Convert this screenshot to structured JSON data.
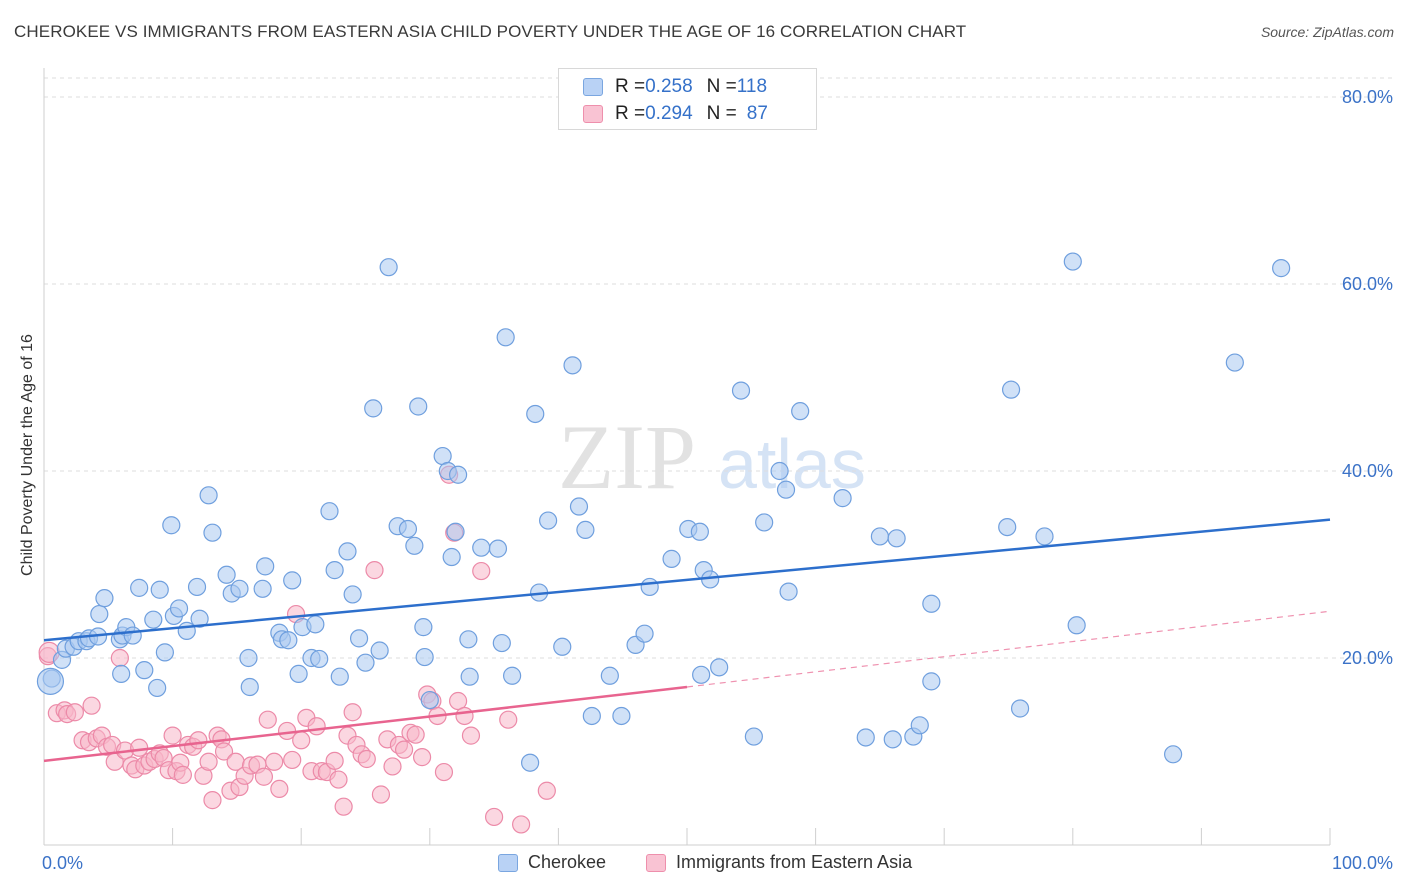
{
  "title": "CHEROKEE VS IMMIGRANTS FROM EASTERN ASIA CHILD POVERTY UNDER THE AGE OF 16 CORRELATION CHART",
  "source": "Source: ZipAtlas.com",
  "watermark": {
    "zip": "ZIP",
    "atlas": "atlas"
  },
  "legend_top": {
    "rows": [
      {
        "r_label": "R = ",
        "r_value": "0.258",
        "n_label": "N = ",
        "n_value": "118"
      },
      {
        "r_label": "R = ",
        "r_value": "0.294",
        "n_label": "N = ",
        "n_value": "87"
      }
    ]
  },
  "legend_bottom": [
    "Cherokee",
    "Immigrants from Eastern Asia"
  ],
  "colors": {
    "blue_fill": "#a9c8f0",
    "blue_stroke": "#6f9fde",
    "blue_line": "#2d6fcc",
    "pink_fill": "#f7b6c9",
    "pink_stroke": "#ec8aa8",
    "pink_line": "#e8648f",
    "axis_text": "#3b72c7",
    "grid": "#dedede"
  },
  "chart_data": {
    "type": "scatter",
    "title": "CHEROKEE VS IMMIGRANTS FROM EASTERN ASIA CHILD POVERTY UNDER THE AGE OF 16 CORRELATION CHART",
    "xlabel": "",
    "ylabel": "Child Poverty Under the Age of 16",
    "xlim": [
      0,
      100
    ],
    "ylim": [
      0,
      80
    ],
    "x_tick_labels": [
      "0.0%",
      "100.0%"
    ],
    "y_ticks": [
      20,
      40,
      60,
      80
    ],
    "y_tick_labels": [
      "20.0%",
      "40.0%",
      "60.0%",
      "80.0%"
    ],
    "grid": true,
    "series": [
      {
        "name": "Cherokee",
        "R": 0.258,
        "N": 118,
        "trend": {
          "x0": 0,
          "y0": 21.9,
          "x1": 100,
          "y1": 34.8,
          "style": "solid"
        },
        "points": [
          [
            0.6,
            17.8
          ],
          [
            1.4,
            19.8
          ],
          [
            1.7,
            21.0
          ],
          [
            2.3,
            21.2
          ],
          [
            2.7,
            21.8
          ],
          [
            3.3,
            21.8
          ],
          [
            3.5,
            22.1
          ],
          [
            4.2,
            22.3
          ],
          [
            4.3,
            24.7
          ],
          [
            4.7,
            26.4
          ],
          [
            5.9,
            22.0
          ],
          [
            6.1,
            22.4
          ],
          [
            6.0,
            18.3
          ],
          [
            6.4,
            23.3
          ],
          [
            6.9,
            22.4
          ],
          [
            7.4,
            27.5
          ],
          [
            7.8,
            18.7
          ],
          [
            8.5,
            24.1
          ],
          [
            8.8,
            16.8
          ],
          [
            9.4,
            20.6
          ],
          [
            9.9,
            34.2
          ],
          [
            10.1,
            24.5
          ],
          [
            10.5,
            25.3
          ],
          [
            11.1,
            22.9
          ],
          [
            11.9,
            27.6
          ],
          [
            12.1,
            24.2
          ],
          [
            12.8,
            37.4
          ],
          [
            13.1,
            33.4
          ],
          [
            14.2,
            28.9
          ],
          [
            14.6,
            26.9
          ],
          [
            15.2,
            27.4
          ],
          [
            15.9,
            20.0
          ],
          [
            16.0,
            16.9
          ],
          [
            17.0,
            27.4
          ],
          [
            17.2,
            29.8
          ],
          [
            18.3,
            22.7
          ],
          [
            18.5,
            22.0
          ],
          [
            19.0,
            21.9
          ],
          [
            19.3,
            28.3
          ],
          [
            19.8,
            18.3
          ],
          [
            20.1,
            23.3
          ],
          [
            20.8,
            20.0
          ],
          [
            21.1,
            23.6
          ],
          [
            21.4,
            19.9
          ],
          [
            22.2,
            35.7
          ],
          [
            22.6,
            29.4
          ],
          [
            23.0,
            18.0
          ],
          [
            23.6,
            31.4
          ],
          [
            24.0,
            26.8
          ],
          [
            24.5,
            22.1
          ],
          [
            25.0,
            19.5
          ],
          [
            25.6,
            46.7
          ],
          [
            26.1,
            20.8
          ],
          [
            26.8,
            61.8
          ],
          [
            27.5,
            34.1
          ],
          [
            28.3,
            33.8
          ],
          [
            28.8,
            32.0
          ],
          [
            29.1,
            46.9
          ],
          [
            29.5,
            23.3
          ],
          [
            29.6,
            20.1
          ],
          [
            30.0,
            15.5
          ],
          [
            31.0,
            41.6
          ],
          [
            31.4,
            40.0
          ],
          [
            31.7,
            30.8
          ],
          [
            32.2,
            39.6
          ],
          [
            32.0,
            33.5
          ],
          [
            33.0,
            22.0
          ],
          [
            33.1,
            18.0
          ],
          [
            34.0,
            31.8
          ],
          [
            35.3,
            31.7
          ],
          [
            35.6,
            21.6
          ],
          [
            35.9,
            54.3
          ],
          [
            36.4,
            18.1
          ],
          [
            38.2,
            46.1
          ],
          [
            38.5,
            27.0
          ],
          [
            39.2,
            34.7
          ],
          [
            40.3,
            21.2
          ],
          [
            41.1,
            51.3
          ],
          [
            41.6,
            36.2
          ],
          [
            42.1,
            33.7
          ],
          [
            42.6,
            13.8
          ],
          [
            44.0,
            18.1
          ],
          [
            44.9,
            13.8
          ],
          [
            46.0,
            21.4
          ],
          [
            46.7,
            22.6
          ],
          [
            47.1,
            27.6
          ],
          [
            48.8,
            30.6
          ],
          [
            50.1,
            33.8
          ],
          [
            51.0,
            33.5
          ],
          [
            51.1,
            18.2
          ],
          [
            51.3,
            29.4
          ],
          [
            51.8,
            28.4
          ],
          [
            52.5,
            19.0
          ],
          [
            54.2,
            48.6
          ],
          [
            55.2,
            11.6
          ],
          [
            56.0,
            34.5
          ],
          [
            57.2,
            40.0
          ],
          [
            57.7,
            38.0
          ],
          [
            57.9,
            27.1
          ],
          [
            58.8,
            46.4
          ],
          [
            62.1,
            37.1
          ],
          [
            63.9,
            11.5
          ],
          [
            65.0,
            33.0
          ],
          [
            66.0,
            11.3
          ],
          [
            66.3,
            32.8
          ],
          [
            67.6,
            11.6
          ],
          [
            68.1,
            12.8
          ],
          [
            69.0,
            17.5
          ],
          [
            69.0,
            25.8
          ],
          [
            74.9,
            34.0
          ],
          [
            75.2,
            48.7
          ],
          [
            75.9,
            14.6
          ],
          [
            77.8,
            33.0
          ],
          [
            80.0,
            62.4
          ],
          [
            80.3,
            23.5
          ],
          [
            87.8,
            9.7
          ],
          [
            92.6,
            51.6
          ],
          [
            96.2,
            61.7
          ],
          [
            37.8,
            8.8
          ],
          [
            9.0,
            27.3
          ]
        ]
      },
      {
        "name": "Immigrants from Eastern Asia",
        "R": 0.294,
        "N": 87,
        "trend": {
          "x0": 0,
          "y0": 9.0,
          "x1": 50,
          "y1": 16.9,
          "style": "solid",
          "extension": {
            "x1": 100,
            "y1": 25.0,
            "style": "dashed"
          }
        },
        "points": [
          [
            0.3,
            20.2
          ],
          [
            1.0,
            14.1
          ],
          [
            1.6,
            14.4
          ],
          [
            1.8,
            14.0
          ],
          [
            2.4,
            14.2
          ],
          [
            3.0,
            11.2
          ],
          [
            3.5,
            11.0
          ],
          [
            3.7,
            14.9
          ],
          [
            4.1,
            11.4
          ],
          [
            4.5,
            11.7
          ],
          [
            4.9,
            10.5
          ],
          [
            5.3,
            10.7
          ],
          [
            5.5,
            8.9
          ],
          [
            5.9,
            20.0
          ],
          [
            6.3,
            10.1
          ],
          [
            6.8,
            8.5
          ],
          [
            7.1,
            8.1
          ],
          [
            7.4,
            10.4
          ],
          [
            7.8,
            8.5
          ],
          [
            8.2,
            8.9
          ],
          [
            8.6,
            9.2
          ],
          [
            9.0,
            9.8
          ],
          [
            9.3,
            9.3
          ],
          [
            9.7,
            8.0
          ],
          [
            10.0,
            11.7
          ],
          [
            10.3,
            7.9
          ],
          [
            10.6,
            8.8
          ],
          [
            10.8,
            7.5
          ],
          [
            11.2,
            10.7
          ],
          [
            11.6,
            10.5
          ],
          [
            12.0,
            11.2
          ],
          [
            12.4,
            7.4
          ],
          [
            12.8,
            8.9
          ],
          [
            13.1,
            4.8
          ],
          [
            13.5,
            11.7
          ],
          [
            13.8,
            11.3
          ],
          [
            14.0,
            10.0
          ],
          [
            14.5,
            5.8
          ],
          [
            14.9,
            8.9
          ],
          [
            15.2,
            6.2
          ],
          [
            15.6,
            7.4
          ],
          [
            16.1,
            8.5
          ],
          [
            16.6,
            8.6
          ],
          [
            17.1,
            7.3
          ],
          [
            17.4,
            13.4
          ],
          [
            17.9,
            8.9
          ],
          [
            18.3,
            6.0
          ],
          [
            18.9,
            12.2
          ],
          [
            19.3,
            9.1
          ],
          [
            19.6,
            24.7
          ],
          [
            20.0,
            11.2
          ],
          [
            20.4,
            13.6
          ],
          [
            20.8,
            7.9
          ],
          [
            21.2,
            12.7
          ],
          [
            21.6,
            7.9
          ],
          [
            22.0,
            7.8
          ],
          [
            22.6,
            9.0
          ],
          [
            22.9,
            7.0
          ],
          [
            23.3,
            4.1
          ],
          [
            23.6,
            11.7
          ],
          [
            24.0,
            14.2
          ],
          [
            24.3,
            10.7
          ],
          [
            24.7,
            9.7
          ],
          [
            25.1,
            9.2
          ],
          [
            25.7,
            29.4
          ],
          [
            26.2,
            5.4
          ],
          [
            26.7,
            11.3
          ],
          [
            27.1,
            8.4
          ],
          [
            27.6,
            10.7
          ],
          [
            28.0,
            10.2
          ],
          [
            28.5,
            12.0
          ],
          [
            28.9,
            11.8
          ],
          [
            29.4,
            9.4
          ],
          [
            29.8,
            16.1
          ],
          [
            30.2,
            15.4
          ],
          [
            30.6,
            13.8
          ],
          [
            31.1,
            7.8
          ],
          [
            31.5,
            39.6
          ],
          [
            31.9,
            33.4
          ],
          [
            32.2,
            15.4
          ],
          [
            32.7,
            13.8
          ],
          [
            33.2,
            11.7
          ],
          [
            34.0,
            29.3
          ],
          [
            35.0,
            3.0
          ],
          [
            36.1,
            13.4
          ],
          [
            37.1,
            2.2
          ],
          [
            39.1,
            5.8
          ]
        ]
      }
    ]
  }
}
